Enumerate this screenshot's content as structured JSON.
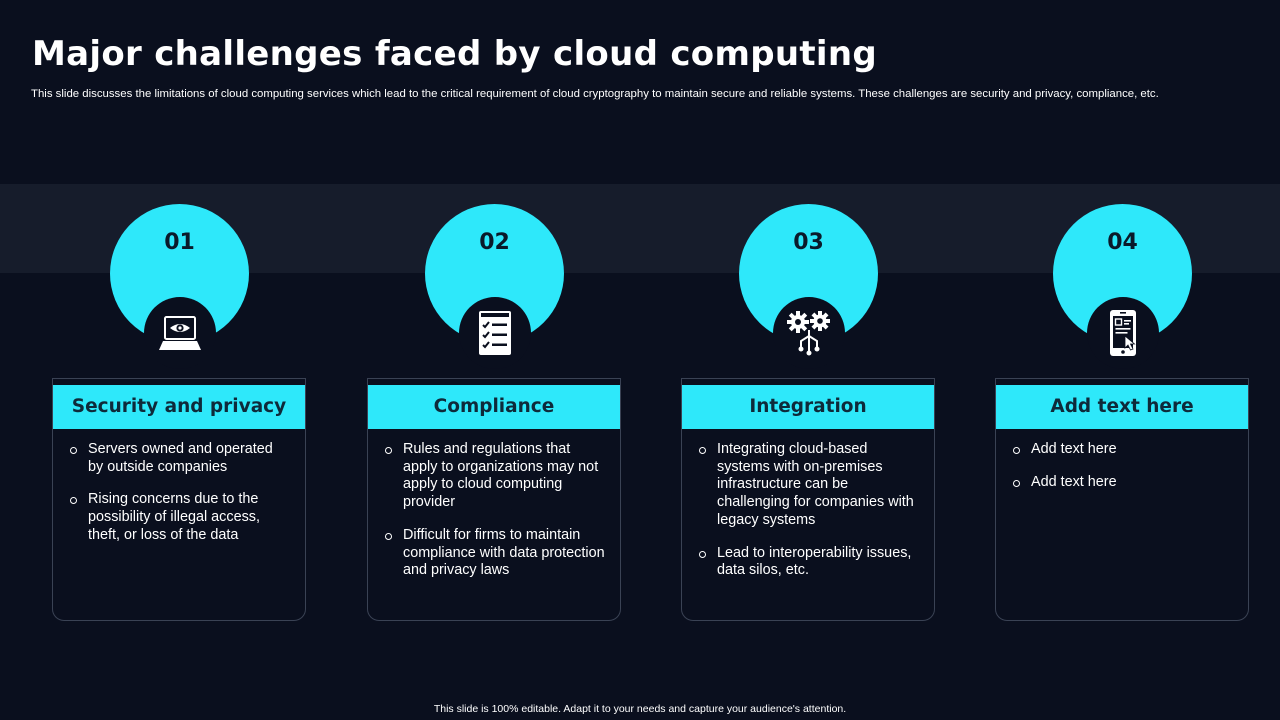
{
  "slide": {
    "title": "Major challenges faced by cloud computing",
    "subtitle": "This slide discusses the limitations of cloud computing services which lead to the critical requirement of cloud cryptography to maintain secure and reliable systems. These challenges are security and privacy,  compliance, etc.",
    "footer": "This slide is 100% editable.  Adapt it to your needs and capture your audience's attention."
  },
  "theme": {
    "accent": "#2ee8fa",
    "background": "#0a0f1e",
    "band": "#161c2b"
  },
  "challenges": [
    {
      "number": "01",
      "icon": "laptop-eye-icon",
      "heading": "Security and privacy",
      "bullets": [
        "Servers owned and operated by outside companies",
        "Rising concerns due to the possibility of illegal access, theft, or loss of the data"
      ]
    },
    {
      "number": "02",
      "icon": "checklist-icon",
      "heading": "Compliance",
      "bullets": [
        "Rules and regulations that apply to organizations may not apply to cloud computing provider",
        "Difficult for firms to maintain compliance with data protection and privacy laws"
      ]
    },
    {
      "number": "03",
      "icon": "gears-network-icon",
      "heading": "Integration",
      "bullets": [
        "Integrating cloud-based systems with on-premises infrastructure can be challenging for companies with legacy systems",
        "Lead to interoperability issues, data silos, etc."
      ]
    },
    {
      "number": "04",
      "icon": "mobile-touch-icon",
      "heading": "Add text here",
      "bullets": [
        "Add text here",
        "Add text here"
      ]
    }
  ]
}
